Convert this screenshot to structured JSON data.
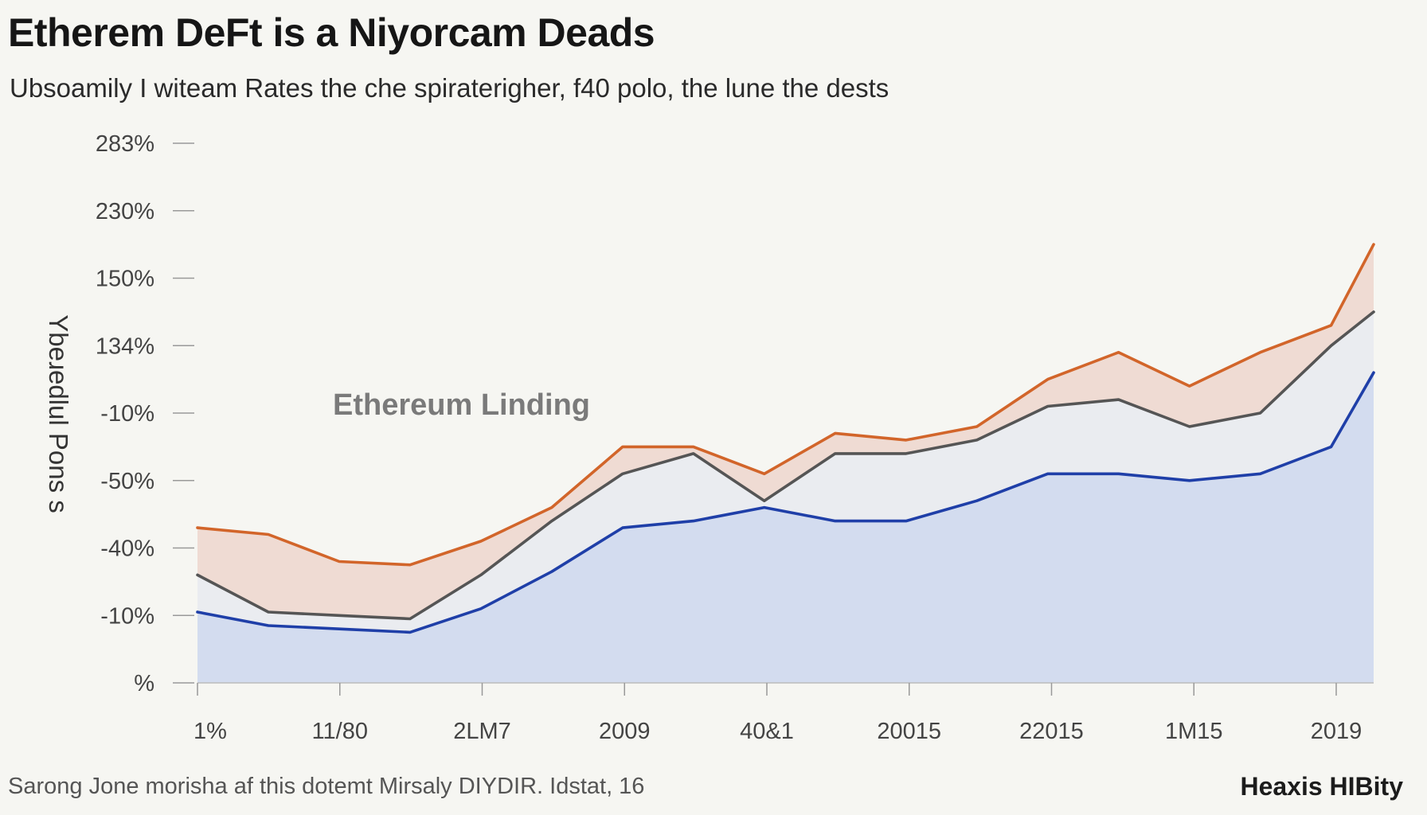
{
  "header": {
    "title": "Etherem DeFt is a Niyorcam Deads",
    "subtitle": "Ubsoamily I witeam Rates the che spiraterigher, f40 polo, the lune the dests"
  },
  "footer": {
    "source": "Sarong Jone morisha af this dotemt Mirsaly DIYDIR. Idstat, 16",
    "brand": "Heaxis HIBity"
  },
  "colors": {
    "background": "#f6f6f2",
    "orange": "#d2652a",
    "gray": "#555555",
    "blue": "#1f3fa8",
    "blue_fill": "#d3dcef",
    "gray_fill": "#e9ebef",
    "orange_fill": "#eed8cf"
  },
  "chart_data": {
    "type": "area",
    "title": "Etherem DeFt is a Niyorcam Deads",
    "ylabel": "Ybeɹedlul Pons s",
    "xlabel": "",
    "annotation": "Ethereum Linding",
    "y_ticks": [
      "283%",
      "230%",
      "150%",
      "134%",
      "-10%",
      "-50%",
      "-40%",
      "-10%",
      "%"
    ],
    "x_ticks": [
      "1%",
      "11/80",
      "2LM7",
      "2009",
      "40&1",
      "20015",
      "22015",
      "1M15",
      "2019"
    ],
    "x": [
      0,
      0.5,
      1,
      1.5,
      2,
      2.5,
      3,
      3.5,
      4,
      4.5,
      5,
      5.5,
      6,
      6.5,
      7,
      7.5,
      8,
      8.3
    ],
    "ylim": [
      0,
      8
    ],
    "grid": false,
    "series": [
      {
        "color": "#d2652a",
        "values": [
          2.3,
          2.2,
          1.8,
          1.75,
          2.1,
          2.6,
          3.5,
          3.5,
          3.1,
          3.7,
          3.6,
          3.8,
          4.5,
          4.9,
          4.4,
          4.9,
          5.3,
          6.5
        ]
      },
      {
        "color": "#555555",
        "values": [
          1.6,
          1.05,
          1.0,
          0.95,
          1.6,
          2.4,
          3.1,
          3.4,
          2.7,
          3.4,
          3.4,
          3.6,
          4.1,
          4.2,
          3.8,
          4.0,
          5.0,
          5.5
        ]
      },
      {
        "color": "#1f3fa8",
        "values": [
          1.05,
          0.85,
          0.8,
          0.75,
          1.1,
          1.65,
          2.3,
          2.4,
          2.6,
          2.4,
          2.4,
          2.7,
          3.1,
          3.1,
          3.0,
          3.1,
          3.5,
          4.6
        ]
      }
    ]
  }
}
